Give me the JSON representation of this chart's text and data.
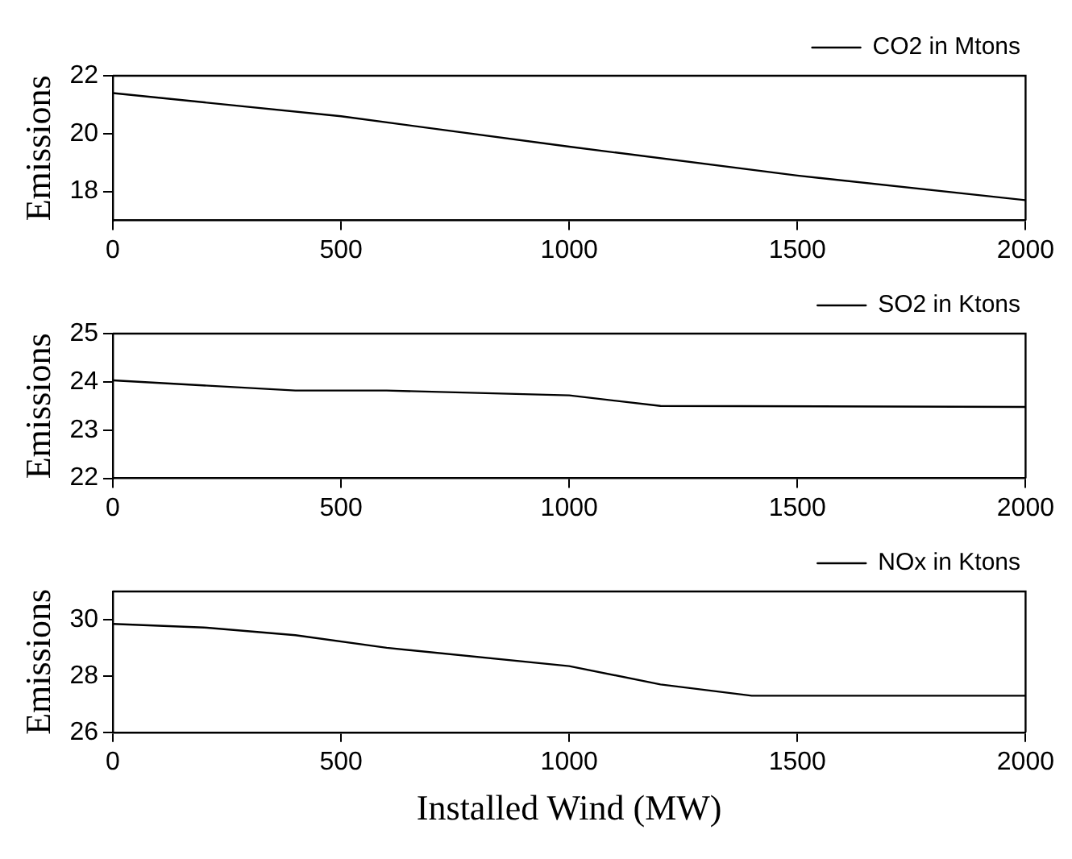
{
  "chart_data": [
    {
      "type": "line",
      "ylabel": "Emissions",
      "x": [
        0,
        500,
        1000,
        1500,
        2000
      ],
      "series": [
        {
          "name": "CO2 in Mtons",
          "color": "#000000",
          "values": [
            21.4,
            20.6,
            19.55,
            18.55,
            17.7
          ]
        }
      ],
      "xlim": [
        0,
        2000
      ],
      "xticks": [
        0,
        500,
        1000,
        1500,
        2000
      ],
      "ylim": [
        17,
        22
      ],
      "yticks": [
        18,
        20,
        22
      ],
      "legend": "top right",
      "grid": false,
      "marker": "none",
      "line_style": "solid"
    },
    {
      "type": "line",
      "ylabel": "Emissions",
      "x": [
        0,
        400,
        600,
        1000,
        1200,
        2000
      ],
      "series": [
        {
          "name": "SO2 in Ktons",
          "color": "#000000",
          "values": [
            24.03,
            23.82,
            23.82,
            23.72,
            23.5,
            23.48
          ]
        }
      ],
      "xlim": [
        0,
        2000
      ],
      "xticks": [
        0,
        500,
        1000,
        1500,
        2000
      ],
      "ylim": [
        22,
        25
      ],
      "yticks": [
        22,
        23,
        24,
        25
      ],
      "legend": "top right",
      "grid": false,
      "marker": "none",
      "line_style": "solid"
    },
    {
      "type": "line",
      "xlabel": "Installed Wind (MW)",
      "ylabel": "Emissions",
      "x": [
        0,
        200,
        400,
        600,
        1000,
        1200,
        1400,
        2000
      ],
      "series": [
        {
          "name": "NOx in Ktons",
          "color": "#000000",
          "values": [
            29.85,
            29.72,
            29.45,
            29.0,
            28.35,
            27.7,
            27.3,
            27.3
          ]
        }
      ],
      "xlim": [
        0,
        2000
      ],
      "xticks": [
        0,
        500,
        1000,
        1500,
        2000
      ],
      "ylim": [
        26,
        31
      ],
      "yticks": [
        26,
        28,
        30
      ],
      "legend": "top right",
      "grid": false,
      "marker": "none",
      "line_style": "solid"
    }
  ]
}
